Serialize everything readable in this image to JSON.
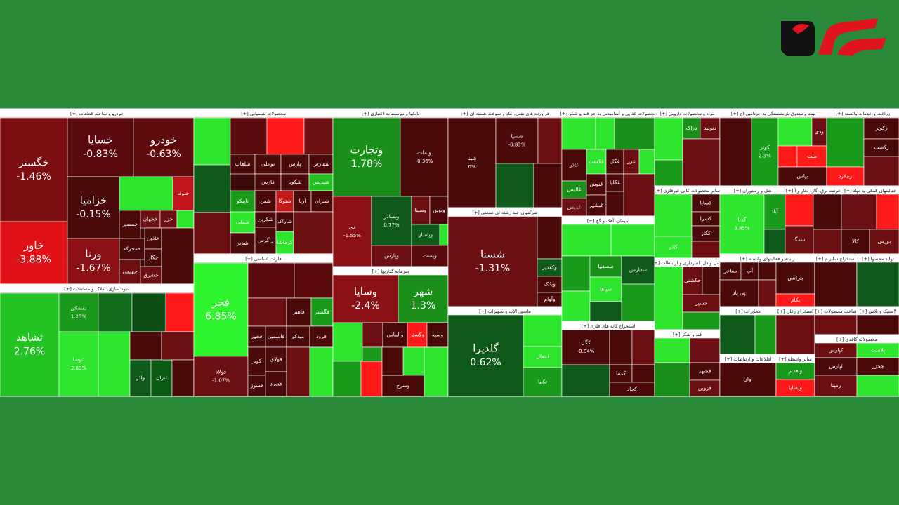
{
  "chart_data": {
    "type": "treemap",
    "sectors": [
      {
        "name": "خودرو و ساخت قطعات [+]",
        "tiles": [
          {
            "name": "خگستر",
            "value": -1.46,
            "value_label": "-1.46%",
            "color": "#7c0d10"
          },
          {
            "name": "خاور",
            "value": -3.88,
            "value_label": "-3.88%",
            "color": "#e01218"
          },
          {
            "name": "خسایا",
            "value": -0.83,
            "value_label": "-0.83%",
            "color": "#5a0a0c"
          },
          {
            "name": "خودرو",
            "value": -0.63,
            "value_label": "-0.63%",
            "color": "#5e0b0e"
          },
          {
            "name": "خزامیا",
            "value": -0.15,
            "value_label": "-0.15%",
            "color": "#4a0a0a"
          },
          {
            "name": "ورنا",
            "value": -1.67,
            "value_label": "-1.67%",
            "color": "#8a1015"
          },
          {
            "color": "#2ee52e"
          },
          {
            "name": "خنوفا",
            "color": "#c0141a"
          },
          {
            "name": "خمصیر",
            "color": "#4a0a0a"
          },
          {
            "name": "خجهان",
            "color": "#6b0f12"
          },
          {
            "name": "خزر",
            "color": "#6b0f12"
          },
          {
            "color": "#2ee52e"
          },
          {
            "name": "خمحرکه",
            "color": "#4a0a0a"
          },
          {
            "name": "خاذین",
            "color": "#4a0a0a"
          },
          {
            "name": "جهیمی",
            "color": "#6b0f12"
          },
          {
            "name": "خکار",
            "color": "#4a0a0a"
          },
          {
            "name": "خشرق",
            "color": "#6b0f12"
          },
          {
            "color": "#4a0a0a"
          }
        ]
      },
      {
        "name": "انبوه سازی، املاک و مستغلات [+]",
        "tiles": [
          {
            "name": "ثشاهد",
            "value": 2.76,
            "value_label": "2.76%",
            "color": "#22c322"
          },
          {
            "name": "ثمسکن",
            "value": 1.25,
            "value_label": "1.25%",
            "color": "#1a9a1a"
          },
          {
            "name": "ثنوسا",
            "value": 2.69,
            "value_label": "2.69%",
            "color": "#2ee52e"
          },
          {
            "color": "#0f6b1a"
          },
          {
            "color": "#0b4d14"
          },
          {
            "color": "#ff1a1a"
          },
          {
            "color": "#2ee52e"
          },
          {
            "color": "#4a0a0a"
          },
          {
            "name": "وآذر",
            "color": "#0f5a1a"
          },
          {
            "name": "ثتران",
            "color": "#0b5a14"
          },
          {
            "color": "#6b0f12"
          },
          {
            "color": "#4a0a0a"
          }
        ]
      },
      {
        "name": "محصولات شیمیایی [+]",
        "tiles": [
          {
            "color": "#2ee52e"
          },
          {
            "color": "#0f5a1a"
          },
          {
            "color": "#6b0f12"
          },
          {
            "color": "#5a0a0c"
          },
          {
            "color": "#ff1a1a"
          },
          {
            "color": "#6b0f12"
          },
          {
            "name": "شلعاب",
            "color": "#4a0a0a"
          },
          {
            "name": "بوعلی",
            "color": "#4a0a0a"
          },
          {
            "name": "پارس",
            "color": "#4a0a0a"
          },
          {
            "name": "شفارس",
            "color": "#4a0a0a"
          },
          {
            "name": "فارس",
            "color": "#4a0a0a"
          },
          {
            "name": "شگویا",
            "color": "#4a0a0a"
          },
          {
            "name": "شپدیس",
            "color": "#22c022"
          },
          {
            "name": "تاپیکو",
            "color": "#1a9a1a"
          },
          {
            "name": "شفن",
            "color": "#4a0a0a"
          },
          {
            "name": "شتوکا",
            "color": "#c01a1a"
          },
          {
            "name": "آریا",
            "color": "#4a0a0a"
          },
          {
            "name": "شیران",
            "color": "#4a0a0a"
          },
          {
            "name": "شملی",
            "color": "#2ee52e"
          },
          {
            "name": "شدیر",
            "color": "#4a0a0a"
          },
          {
            "name": "شکربن",
            "color": "#4a0a0a"
          },
          {
            "name": "زاگرس",
            "color": "#4a0a0a"
          },
          {
            "name": "شاراک",
            "color": "#4a0a0a"
          },
          {
            "name": "کرماشا",
            "color": "#2ee52e"
          },
          {
            "color": "#6b0f12"
          }
        ]
      },
      {
        "name": "فلزات اساسی [+]",
        "tiles": [
          {
            "name": "فجر",
            "value": 6.85,
            "value_label": "6.85%",
            "color": "#2ef52e"
          },
          {
            "name": "فولاد",
            "value": -1.07,
            "value_label": "-1.07%",
            "color": "#6b0f12"
          },
          {
            "color": "#5a0a0c"
          },
          {
            "color": "#5a0a0c"
          },
          {
            "color": "#6b0f12"
          },
          {
            "name": "فاهنر",
            "color": "#4a0a0a"
          },
          {
            "name": "فگستر",
            "color": "#1a9a1a"
          },
          {
            "name": "فخوز",
            "color": "#4a0a0a"
          },
          {
            "name": "فاسمین",
            "color": "#4a0a0a"
          },
          {
            "name": "میدکو",
            "color": "#4a0a0a"
          },
          {
            "name": "فرود",
            "color": "#4a0a0a"
          },
          {
            "name": "کویر",
            "color": "#4a0a0a"
          },
          {
            "name": "فولای",
            "color": "#4a0a0a"
          },
          {
            "name": "فسوژ",
            "color": "#4a0a0a"
          },
          {
            "name": "فنورد",
            "color": "#4a0a0a"
          },
          {
            "color": "#6b0f12"
          },
          {
            "color": "#2ee52e"
          }
        ]
      },
      {
        "name": "بانکها و موسسات اعتباری [+]",
        "tiles": [
          {
            "name": "وتجارت",
            "value": 1.78,
            "value_label": "1.78%",
            "color": "#1a8f1a"
          },
          {
            "name": "وبملت",
            "value": -0.36,
            "value_label": "-0.36%",
            "color": "#4a0a0a"
          },
          {
            "name": "دی",
            "value": -1.55,
            "value_label": "-1.55%",
            "color": "#8a1015"
          },
          {
            "name": "وبصادر",
            "value": 0.77,
            "value_label": "0.77%",
            "color": "#0f5a1a"
          },
          {
            "name": "وسینا",
            "color": "#6b0f12"
          },
          {
            "name": "ونوین",
            "color": "#4a0a0a"
          },
          {
            "name": "وپاسار",
            "color": "#0f5a1a"
          },
          {
            "color": "#2ee52e"
          },
          {
            "name": "وپارس",
            "color": "#6b0f12"
          },
          {
            "name": "ویست",
            "color": "#5a0a0c"
          }
        ]
      },
      {
        "name": "سرمایه گذاریها [+]",
        "tiles": [
          {
            "name": "وسایا",
            "value": -2.4,
            "value_label": "-2.4%",
            "color": "#8a1015"
          },
          {
            "name": "شهر",
            "value": 1.3,
            "value_label": "1.3%",
            "color": "#1a8f1a"
          },
          {
            "color": "#2ee52e"
          },
          {
            "color": "#6b0f12"
          },
          {
            "name": "والماس",
            "color": "#4a0a0a"
          },
          {
            "name": "وگستر",
            "color": "#ff1a1a"
          },
          {
            "name": "وسپه",
            "color": "#4a0a0a"
          },
          {
            "color": "#1a9a1a"
          },
          {
            "color": "#ff1a1a"
          },
          {
            "color": "#1a9a1a"
          },
          {
            "color": "#2ee52e"
          },
          {
            "name": "وسرج",
            "color": "#4a0a0a"
          },
          {
            "color": "#4a0a0a"
          },
          {
            "color": "#2ee52e"
          }
        ]
      },
      {
        "name": "فرآورده های نفتی، کک و سوخت هسته ای [+]",
        "tiles": [
          {
            "name": "شپنا",
            "value": 0,
            "value_label": "0%",
            "color": "#4a0a0a"
          },
          {
            "name": "شسپا",
            "value": -0.83,
            "value_label": "-0.83%",
            "color": "#4a0a0a"
          },
          {
            "color": "#6b0f12"
          },
          {
            "color": "#0f5a1a"
          },
          {
            "color": "#4a0a0a"
          }
        ]
      },
      {
        "name": "شرکتهای چند رشته ای صنعتی [+]",
        "tiles": [
          {
            "name": "شستا",
            "value": -1.31,
            "value_label": "-1.31%",
            "color": "#6b0f12"
          },
          {
            "color": "#4a0a0a"
          },
          {
            "name": "وکغدیر",
            "color": "#0f5a1a"
          },
          {
            "name": "وبانک",
            "color": "#4a0a0a"
          },
          {
            "name": "وآوام",
            "color": "#4a0a0a"
          }
        ]
      },
      {
        "name": "ماشین آلات و تجهیزات [+]",
        "tiles": [
          {
            "name": "گلدیرا",
            "value": 0.62,
            "value_label": "0.62%",
            "color": "#0f5a1a"
          },
          {
            "color": "#2ee52e"
          },
          {
            "name": "انتقال",
            "color": "#2ee52e"
          },
          {
            "name": "تکنیا",
            "color": "#1a9a1a"
          }
        ]
      },
      {
        "name": "محصولات غذایی و آشامیدنی به جز قند و شکر [+]",
        "tiles": [
          {
            "color": "#2ee52e"
          },
          {
            "color": "#2ee52e"
          },
          {
            "color": "#1a8f1a"
          },
          {
            "name": "غاذر",
            "color": "#4a0a0a"
          },
          {
            "name": "غکشت",
            "color": "#2ee52e"
          },
          {
            "name": "غگل",
            "color": "#4a0a0a"
          },
          {
            "name": "غزر",
            "color": "#6b0f12"
          },
          {
            "color": "#2ee52e"
          },
          {
            "name": "غالبس",
            "color": "#1a8f1a"
          },
          {
            "name": "غدیس",
            "color": "#6b0f12"
          },
          {
            "name": "غنوش",
            "color": "#4a0a0a"
          },
          {
            "name": "غبشهر",
            "color": "#4a0a0a"
          },
          {
            "name": "غگلپا",
            "color": "#4a0a0a"
          },
          {
            "color": "#6b0f12"
          },
          {
            "color": "#4a0a0a"
          }
        ]
      },
      {
        "name": "سیمان، آهک و گچ [+]",
        "tiles": [
          {
            "color": "#2ee52e"
          },
          {
            "color": "#2ee52e"
          },
          {
            "color": "#1a9a1a"
          },
          {
            "name": "سصفها",
            "color": "#1a8f1a"
          },
          {
            "name": "سفارس",
            "color": "#0f5a1a"
          },
          {
            "name": "سپاها",
            "color": "#2ee52e"
          },
          {
            "color": "#2ee52e"
          },
          {
            "color": "#1a9a1a"
          },
          {
            "color": "#0f5a1a"
          }
        ]
      },
      {
        "name": "استخراج کانه های فلزی [+]",
        "tiles": [
          {
            "name": "کگل",
            "value": -0.84,
            "value_label": "-0.84%",
            "color": "#4a0a0a"
          },
          {
            "color": "#4a0a0a"
          },
          {
            "color": "#6b0f12"
          },
          {
            "color": "#0f5a1a"
          },
          {
            "name": "کدما",
            "color": "#4a0a0a"
          },
          {
            "color": "#4a0a0a"
          },
          {
            "name": "کچاد",
            "color": "#4a0a0a"
          }
        ]
      },
      {
        "name": "مواد و محصولات دارویی [+]",
        "tiles": [
          {
            "color": "#2ee52e"
          },
          {
            "name": "دزاک",
            "color": "#1a8f1a"
          },
          {
            "name": "دتولید",
            "color": "#6b0f12"
          },
          {
            "color": "#1a9a1a"
          },
          {
            "color": "#6b0f12"
          }
        ]
      },
      {
        "name": "سایر محصولات کانی غیرفلزی [+]",
        "tiles": [
          {
            "color": "#2ee52e"
          },
          {
            "name": "کساپا",
            "color": "#4a0a0a"
          },
          {
            "name": "کسرا",
            "color": "#4a0a0a"
          },
          {
            "name": "کگاز",
            "color": "#4a0a0a"
          },
          {
            "name": "کاذر",
            "color": "#2ee52e"
          },
          {
            "color": "#6b0f12"
          }
        ]
      },
      {
        "name": "حمل ونقل، انبارداری و ارتباطات [+]",
        "tiles": [
          {
            "color": "#2ee52e"
          },
          {
            "name": "حکشتی",
            "color": "#6b0f12"
          },
          {
            "color": "#4a0a0a"
          },
          {
            "name": "حسیر",
            "color": "#6b0f12"
          },
          {
            "color": "#1a9a1a"
          }
        ]
      },
      {
        "name": "قند و شکر [+]",
        "tiles": [
          {
            "color": "#2ee52e"
          },
          {
            "color": "#6b0f12"
          },
          {
            "name": "قشهد",
            "color": "#4a0a0a"
          },
          {
            "color": "#1a8f1a"
          },
          {
            "name": "قزوین",
            "color": "#6b0f12"
          }
        ]
      },
      {
        "name": "بیمه وصندوق بازنشستگی به جزتامین اج [+]",
        "tiles": [
          {
            "color": "#4a0a0a"
          },
          {
            "name": "کوثر",
            "value": 2.3,
            "value_label": "2.3%",
            "color": "#1a9a1a"
          },
          {
            "color": "#2ee52e"
          },
          {
            "name": "ودی",
            "color": "#6b0f12"
          },
          {
            "color": "#ff1a1a"
          },
          {
            "name": "ملت",
            "color": "#ff1a1a"
          },
          {
            "name": "بپاس",
            "color": "#4a0a0a"
          }
        ]
      },
      {
        "name": "زراعت و خدمات وابسته [+]",
        "tiles": [
          {
            "color": "#1a9a1a"
          },
          {
            "name": "زکوثر",
            "color": "#4a0a0a"
          },
          {
            "name": "زکشت",
            "color": "#4a0a0a"
          },
          {
            "name": "زملارد",
            "color": "#ff1a1a"
          },
          {
            "color": "#6b0f12"
          }
        ]
      },
      {
        "name": "هتل و رستوران [+]",
        "tiles": [
          {
            "name": "گدنا",
            "value": 3.85,
            "value_label": "3.85%",
            "color": "#2ee52e"
          },
          {
            "name": "آباد",
            "color": "#1a9a1a"
          },
          {
            "color": "#0f5a1a"
          }
        ]
      },
      {
        "name": "عرضه برق، گاز، بخار و آ [+]",
        "tiles": [
          {
            "color": "#ff1a1a"
          },
          {
            "name": "سمگا",
            "color": "#6b0f12"
          },
          {
            "color": "#4a0a0a"
          },
          {
            "color": "#6b0f12"
          }
        ]
      },
      {
        "name": "فعالیتهای کمکی به نهاد [+]",
        "tiles": [
          {
            "color": "#6b0f12"
          },
          {
            "color": "#ff1a1a"
          },
          {
            "name": "کالا",
            "color": "#4a0a0a"
          },
          {
            "name": "بورس",
            "color": "#6b0f12"
          }
        ]
      },
      {
        "name": "رایانه و فعالیتهای وابسته [+]",
        "tiles": [
          {
            "name": "مفاخر",
            "color": "#4a0a0a"
          },
          {
            "name": "آپ",
            "color": "#4a0a0a"
          },
          {
            "color": "#4a0a0a"
          },
          {
            "name": "پی پاد",
            "color": "#4a0a0a"
          },
          {
            "color": "#6b0f12"
          },
          {
            "name": "بترانس",
            "color": "#4a0a0a"
          },
          {
            "name": "بکام",
            "color": "#ff1a1a"
          }
        ]
      },
      {
        "name": "استخراج سایر م [+]",
        "tiles": [
          {
            "color": "#4a0a0a"
          }
        ]
      },
      {
        "name": "تولید محصوا [+]",
        "tiles": [
          {
            "color": "#0f5a1a"
          }
        ]
      },
      {
        "name": "مخابرات [+]",
        "tiles": [
          {
            "color": "#0f5a1a"
          },
          {
            "color": "#1a9a1a"
          }
        ]
      },
      {
        "name": "استخراج زغال [+]",
        "tiles": [
          {
            "color": "#6b0f12"
          }
        ]
      },
      {
        "name": "اطلاعات و ارتباطات [+]",
        "tiles": [
          {
            "name": "اوان",
            "color": "#4a0a0a"
          }
        ]
      },
      {
        "name": "سایر واسطه [+]",
        "tiles": [
          {
            "name": "ولغدیر",
            "color": "#1a9a1a"
          },
          {
            "name": "ولساپا",
            "color": "#ff1a1a"
          }
        ]
      },
      {
        "name": "ساخت محصولات [+]",
        "tiles": [
          {
            "color": "#6b0f12"
          }
        ]
      },
      {
        "name": "لاستیک و پلاس [+]",
        "tiles": [
          {
            "color": "#4a0a0a"
          }
        ]
      },
      {
        "name": "محصولات کاغذی [+]",
        "tiles": [
          {
            "name": "کپارس",
            "color": "#6b0f12"
          },
          {
            "name": "پلاست",
            "color": "#2ee52e"
          },
          {
            "name": "لپارس",
            "color": "#4a0a0a"
          },
          {
            "name": "چخزر",
            "color": "#4a0a0a"
          },
          {
            "name": "رمپنا",
            "color": "#6b0f12"
          },
          {
            "color": "#2ee52e"
          }
        ]
      }
    ]
  }
}
